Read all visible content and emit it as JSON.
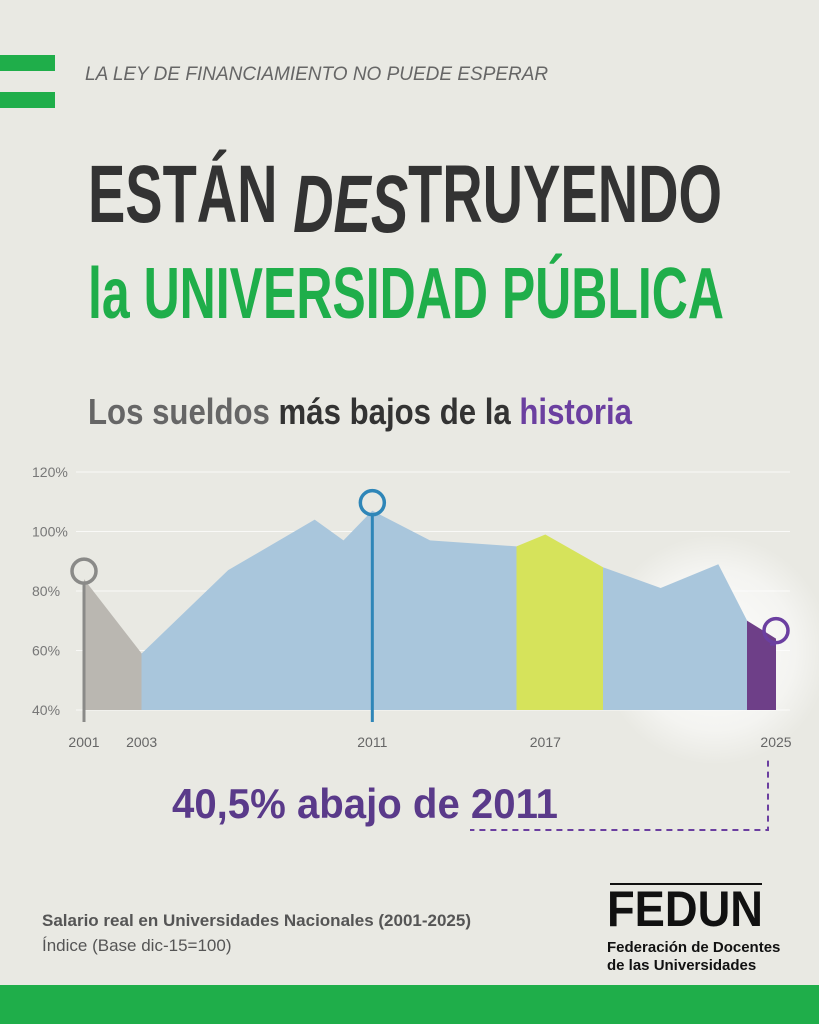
{
  "header": {
    "kicker": "LA LEY DE FINANCIAMIENTO NO PUEDE ESPERAR",
    "title_parts": [
      "ESTÁN ",
      "DES",
      "TRUYENDO"
    ],
    "title_line2": "la UNIVERSIDAD PÚBLICA",
    "subtitle_parts": [
      "Los sueldos ",
      "más bajos",
      " de la ",
      "historia"
    ]
  },
  "chart_data": {
    "type": "area",
    "x": [
      2001,
      2003,
      2006,
      2009,
      2010,
      2011,
      2013,
      2016,
      2017,
      2019,
      2021,
      2023,
      2024,
      2025
    ],
    "values": [
      84,
      59,
      87,
      104,
      97,
      107,
      97,
      95,
      99,
      88,
      81,
      89,
      70,
      64
    ],
    "xlim": [
      2001,
      2025
    ],
    "xticks": [
      2001,
      2003,
      2011,
      2017,
      2025
    ],
    "ylim": [
      40,
      120
    ],
    "yticks": [
      {
        "value": 40,
        "label": "40%"
      },
      {
        "value": 60,
        "label": "60%"
      },
      {
        "value": 80,
        "label": "80%"
      },
      {
        "value": 100,
        "label": "100%"
      },
      {
        "value": 120,
        "label": "120%"
      }
    ],
    "grid": true,
    "segments": [
      {
        "from": 2001,
        "to": 2003,
        "color": "#bab7b1"
      },
      {
        "from": 2003,
        "to": 2016,
        "color": "#a9c6dc"
      },
      {
        "from": 2016,
        "to": 2019,
        "color": "#d6e35b"
      },
      {
        "from": 2019,
        "to": 2024,
        "color": "#a9c6dc"
      },
      {
        "from": 2024,
        "to": 2025,
        "color": "#6e3f88"
      }
    ],
    "markers": [
      {
        "x": 2001,
        "color": "#8a8a88"
      },
      {
        "x": 2011,
        "color": "#2f86b8"
      },
      {
        "x": 2025,
        "color": "#6b3fa0"
      }
    ],
    "annotation": "40,5% abajo de 2011"
  },
  "footer": {
    "source": "Salario real en Universidades Nacionales (2001-2025)",
    "note": "Índice (Base dic-15=100)",
    "logo": "FEDUN",
    "logo_line1": "Federación de Docentes",
    "logo_line2": "de las Universidades"
  }
}
